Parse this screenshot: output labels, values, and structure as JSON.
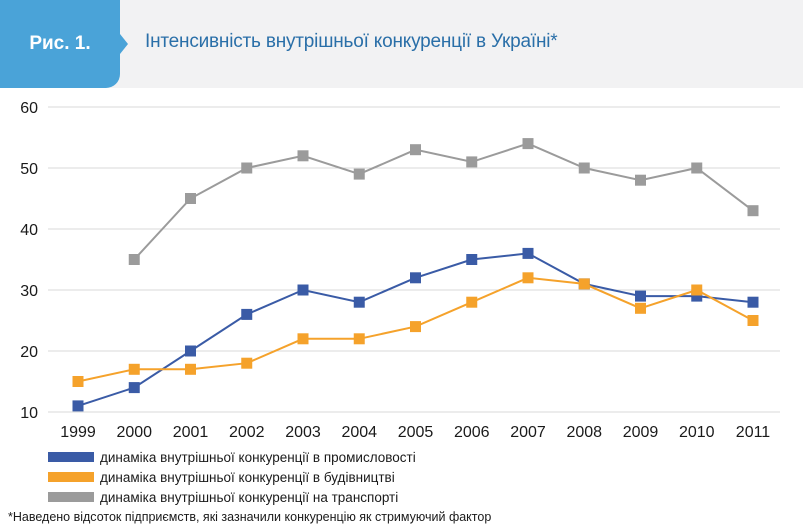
{
  "figure": {
    "label": "Рис. 1.",
    "title": "Інтенсивність внутрішньої конкуренції в Україні*"
  },
  "chart_data": {
    "type": "line",
    "title": "",
    "xlabel": "",
    "ylabel": "",
    "categories": [
      "1999",
      "2000",
      "2001",
      "2002",
      "2003",
      "2004",
      "2005",
      "2006",
      "2007",
      "2008",
      "2009",
      "2010",
      "2011"
    ],
    "ylim": [
      10,
      60
    ],
    "yticks": [
      10,
      20,
      30,
      40,
      50,
      60
    ],
    "grid": "horizontal",
    "legend_position": "bottom-left",
    "series": [
      {
        "name": "динаміка внутрішньої конкуренції в промисловості",
        "color": "#3a5ba6",
        "values": [
          11,
          14,
          20,
          26,
          30,
          28,
          32,
          35,
          36,
          31,
          29,
          29,
          28
        ]
      },
      {
        "name": "динаміка внутрішньої конкуренції в будівництві",
        "color": "#f5a22b",
        "values": [
          15,
          17,
          17,
          18,
          22,
          22,
          24,
          28,
          32,
          31,
          27,
          30,
          25
        ]
      },
      {
        "name": "динаміка внутрішньої конкуренції на транспорті",
        "color": "#9b9b9b",
        "values": [
          null,
          35,
          45,
          50,
          52,
          49,
          53,
          51,
          54,
          50,
          48,
          50,
          43
        ]
      }
    ]
  },
  "footnote": "*Наведено відсоток підприємств, які зазначили конкуренцію як стримуючий фактор"
}
